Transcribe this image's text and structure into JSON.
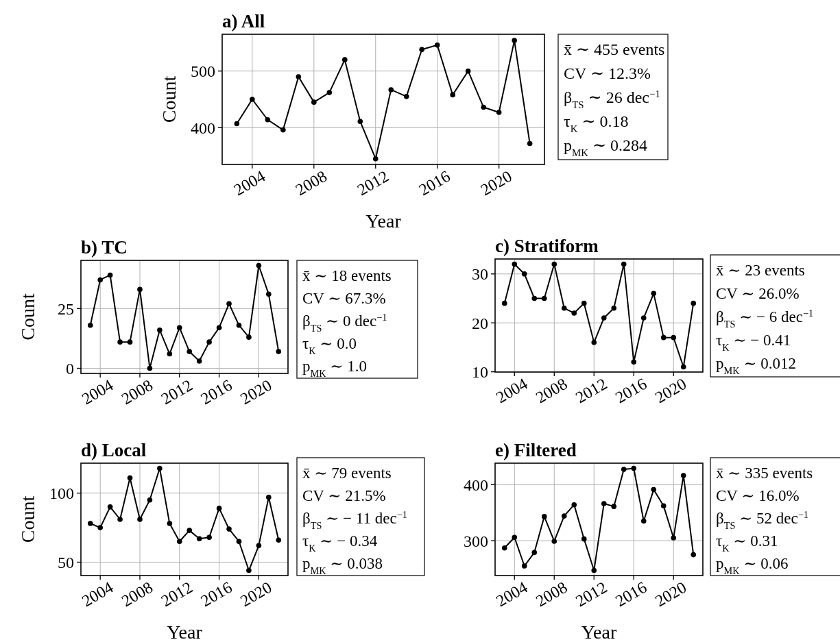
{
  "chart_data": [
    {
      "type": "line",
      "title": "a) All",
      "xlabel": "Year",
      "ylabel": "Count",
      "x": [
        2003,
        2004,
        2005,
        2006,
        2007,
        2008,
        2009,
        2010,
        2011,
        2012,
        2013,
        2014,
        2015,
        2016,
        2017,
        2018,
        2019,
        2020,
        2021,
        2022
      ],
      "series": [
        {
          "color": "#000000",
          "values": [
            407,
            450,
            414,
            396,
            490,
            445,
            462,
            520,
            411,
            345,
            467,
            455,
            538,
            546,
            458,
            500,
            436,
            427,
            554,
            372
          ]
        }
      ],
      "xlim": [
        2002.05,
        2022.95
      ],
      "ylim": [
        335,
        565
      ],
      "xticks": [
        2004,
        2008,
        2012,
        2016,
        2020
      ],
      "yticks": [
        400,
        500
      ],
      "grid": true,
      "marker": "circle",
      "annotations": [
        "x̄ ∼ 455 events",
        "CV ∼ 12.3%",
        "β$_{TS}$ ∼ 26 dec$^{−1}$",
        "τ$_{K}$ ∼ 0.18",
        "p$_{MK}$ ∼ 0.284"
      ]
    },
    {
      "type": "line",
      "title": "b) TC",
      "ylabel": "Count",
      "x": [
        2003,
        2004,
        2005,
        2006,
        2007,
        2008,
        2009,
        2010,
        2011,
        2012,
        2013,
        2014,
        2015,
        2016,
        2017,
        2018,
        2019,
        2020,
        2021,
        2022
      ],
      "series": [
        {
          "color": "#000000",
          "values": [
            18,
            37,
            39,
            11,
            11,
            33,
            0,
            16,
            6,
            17,
            7,
            3,
            11,
            17,
            27,
            18,
            13,
            43,
            31,
            7
          ]
        }
      ],
      "xlim": [
        2002.05,
        2022.95
      ],
      "ylim": [
        -2.15,
        45.15
      ],
      "xticks": [
        2004,
        2008,
        2012,
        2016,
        2020
      ],
      "yticks": [
        0,
        25
      ],
      "grid": true,
      "marker": "circle",
      "annotations": [
        "x̄ ∼ 18 events",
        "CV ∼ 67.3%",
        "β$_{TS}$ ∼ 0 dec$^{−1}$",
        "τ$_{K}$ ∼ 0.0",
        "p$_{MK}$ ∼ 1.0"
      ]
    },
    {
      "type": "line",
      "title": "c) Stratiform",
      "x": [
        2003,
        2004,
        2005,
        2006,
        2007,
        2008,
        2009,
        2010,
        2011,
        2012,
        2013,
        2014,
        2015,
        2016,
        2017,
        2018,
        2019,
        2020,
        2021,
        2022
      ],
      "series": [
        {
          "color": "#000000",
          "values": [
            24,
            32,
            30,
            25,
            25,
            32,
            23,
            22,
            24,
            16,
            21,
            23,
            32,
            12,
            21,
            26,
            17,
            17,
            11,
            24
          ]
        }
      ],
      "xlim": [
        2002.05,
        2022.95
      ],
      "ylim": [
        9.95,
        33.05
      ],
      "xticks": [
        2004,
        2008,
        2012,
        2016,
        2020
      ],
      "yticks": [
        10,
        20,
        30
      ],
      "grid": true,
      "marker": "circle",
      "annotations": [
        "x̄ ∼ 23 events",
        "CV ∼ 26.0%",
        "β$_{TS}$ ∼ − 6 dec$^{−1}$",
        "τ$_{K}$ ∼ − 0.41",
        "p$_{MK}$ ∼ 0.012"
      ]
    },
    {
      "type": "line",
      "title": "d) Local",
      "xlabel": "Year",
      "ylabel": "Count",
      "x": [
        2003,
        2004,
        2005,
        2006,
        2007,
        2008,
        2009,
        2010,
        2011,
        2012,
        2013,
        2014,
        2015,
        2016,
        2017,
        2018,
        2019,
        2020,
        2021,
        2022
      ],
      "series": [
        {
          "color": "#000000",
          "values": [
            78,
            75,
            90,
            81,
            111,
            81,
            95,
            118,
            78,
            65,
            73,
            67,
            68,
            89,
            74,
            65,
            44,
            62,
            97,
            66
          ]
        }
      ],
      "xlim": [
        2002.05,
        2022.95
      ],
      "ylim": [
        40.3,
        121.7
      ],
      "xticks": [
        2004,
        2008,
        2012,
        2016,
        2020
      ],
      "yticks": [
        50,
        100
      ],
      "grid": true,
      "marker": "circle",
      "annotations": [
        "x̄ ∼ 79 events",
        "CV ∼ 21.5%",
        "β$_{TS}$ ∼ − 11 dec$^{−1}$",
        "τ$_{K}$ ∼ − 0.34",
        "p$_{MK}$ ∼ 0.038"
      ]
    },
    {
      "type": "line",
      "title": "e) Filtered",
      "xlabel": "Year",
      "x": [
        2003,
        2004,
        2005,
        2006,
        2007,
        2008,
        2009,
        2010,
        2011,
        2012,
        2013,
        2014,
        2015,
        2016,
        2017,
        2018,
        2019,
        2020,
        2021,
        2022
      ],
      "series": [
        {
          "color": "#000000",
          "values": [
            287,
            306,
            255,
            279,
            343,
            299,
            344,
            364,
            303,
            247,
            366,
            361,
            427,
            429,
            335,
            391,
            362,
            305,
            416,
            275
          ]
        }
      ],
      "xlim": [
        2002.05,
        2022.95
      ],
      "ylim": [
        237.9,
        438.1
      ],
      "xticks": [
        2004,
        2008,
        2012,
        2016,
        2020
      ],
      "yticks": [
        300,
        400
      ],
      "grid": true,
      "marker": "circle",
      "annotations": [
        "x̄ ∼ 335 events",
        "CV ∼ 16.0%",
        "β$_{TS}$ ∼ 52 dec$^{−1}$",
        "τ$_{K}$ ∼ 0.31",
        "p$_{MK}$ ∼ 0.06"
      ]
    }
  ]
}
